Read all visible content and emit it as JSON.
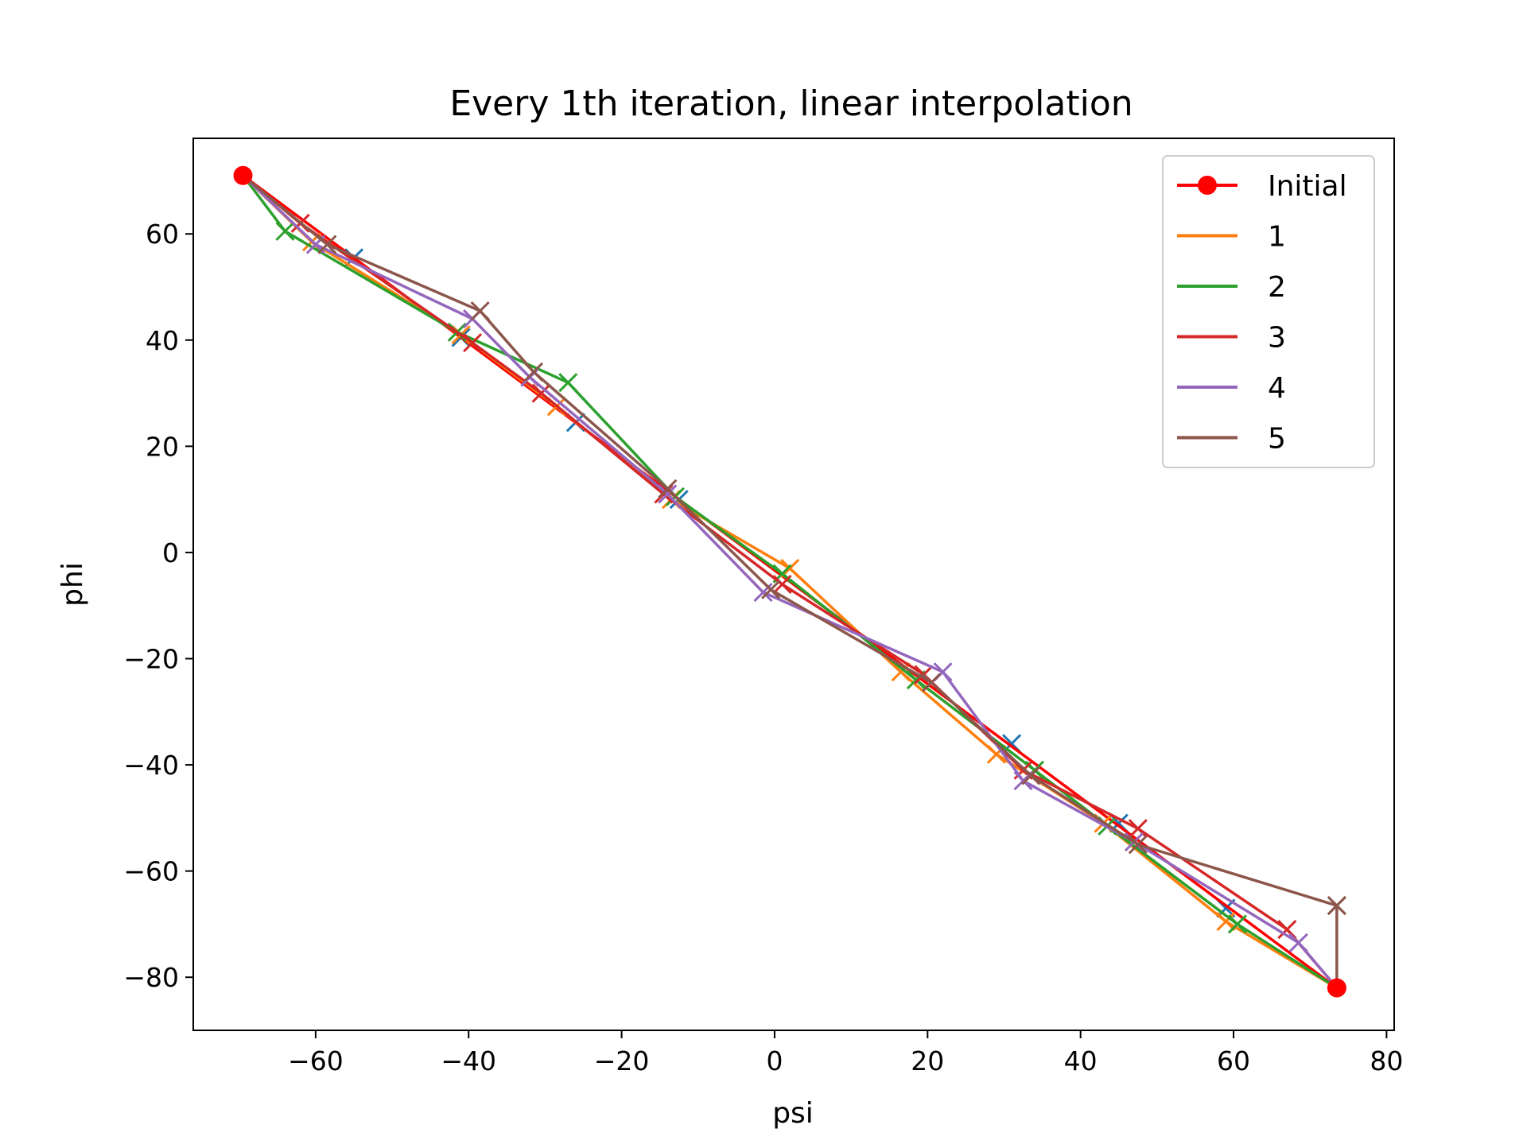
{
  "chart_data": {
    "type": "line",
    "title": "Every 1th iteration, linear interpolation",
    "xlabel": "psi",
    "ylabel": "phi",
    "xlim": [
      -76,
      81
    ],
    "ylim": [
      -90,
      78
    ],
    "xticks": [
      -60,
      -40,
      -20,
      0,
      20,
      40,
      60,
      80
    ],
    "yticks": [
      60,
      40,
      20,
      0,
      -20,
      -40,
      -60,
      -80
    ],
    "xtick_labels": [
      "−60",
      "−40",
      "−20",
      "0",
      "20",
      "40",
      "60",
      "80"
    ],
    "ytick_labels": [
      "60",
      "40",
      "20",
      "0",
      "−20",
      "−40",
      "−60",
      "−80"
    ],
    "grid": false,
    "legend_position": "top-right",
    "endpoints": {
      "color": "#ff0000",
      "points": [
        [
          -69.5,
          71
        ],
        [
          73.5,
          -82
        ]
      ]
    },
    "series": [
      {
        "name": "Initial",
        "color": "#ff0000",
        "marker": "o",
        "x": [
          -69.5,
          73.5
        ],
        "y": [
          71,
          -82
        ]
      },
      {
        "name": "1",
        "color": "#ff7f0e",
        "marker": "x",
        "x": [
          -69.5,
          -60.5,
          -41,
          -28.5,
          -13.5,
          2,
          16.5,
          29,
          43,
          59,
          73.5
        ],
        "y": [
          71,
          58.5,
          41,
          27.5,
          10,
          -3,
          -22.5,
          -38,
          -51,
          -69.5,
          -82
        ]
      },
      {
        "name": "2",
        "color": "#2ca02c",
        "marker": "x",
        "x": [
          -69.5,
          -64,
          -41.5,
          -27,
          -13,
          1,
          18.5,
          34,
          43.5,
          60.5,
          73.5
        ],
        "y": [
          71,
          60.5,
          41.5,
          32,
          10.5,
          -4,
          -24,
          -41,
          -51.5,
          -70,
          -82
        ]
      },
      {
        "name": "3",
        "color": "#d62728",
        "marker": "x",
        "x": [
          -69.5,
          -62,
          -39.5,
          -30.5,
          -14.5,
          1,
          19.5,
          32.5,
          47.5,
          67,
          73.5
        ],
        "y": [
          71,
          62,
          39.5,
          30,
          11,
          -6,
          -23,
          -41,
          -52,
          -71,
          -82
        ]
      },
      {
        "name": "4",
        "color": "#9467bd",
        "marker": "x",
        "x": [
          -69.5,
          -60,
          -39.5,
          -32,
          -14,
          -1.5,
          22,
          32.5,
          47,
          68.5,
          73.5
        ],
        "y": [
          71,
          58,
          44,
          33,
          11,
          -7.5,
          -22.5,
          -43,
          -54.5,
          -73.5,
          -82
        ]
      },
      {
        "name": "5",
        "color": "#8c564b",
        "marker": "x",
        "x": [
          -69.5,
          -58.5,
          -38.5,
          -31.5,
          -14,
          -0.5,
          20.5,
          33.5,
          47.5,
          73.5,
          73.5
        ],
        "y": [
          71,
          58,
          45.5,
          34,
          12,
          -7,
          -24.5,
          -42,
          -55,
          -66.5,
          -82
        ]
      }
    ],
    "extra_markers": {
      "color": "#1f77b4",
      "x": [
        -55,
        -41,
        -26,
        -12.5,
        31,
        45,
        59
      ],
      "y": [
        55.5,
        40.5,
        24.5,
        10,
        -36,
        -51,
        -67
      ]
    }
  }
}
